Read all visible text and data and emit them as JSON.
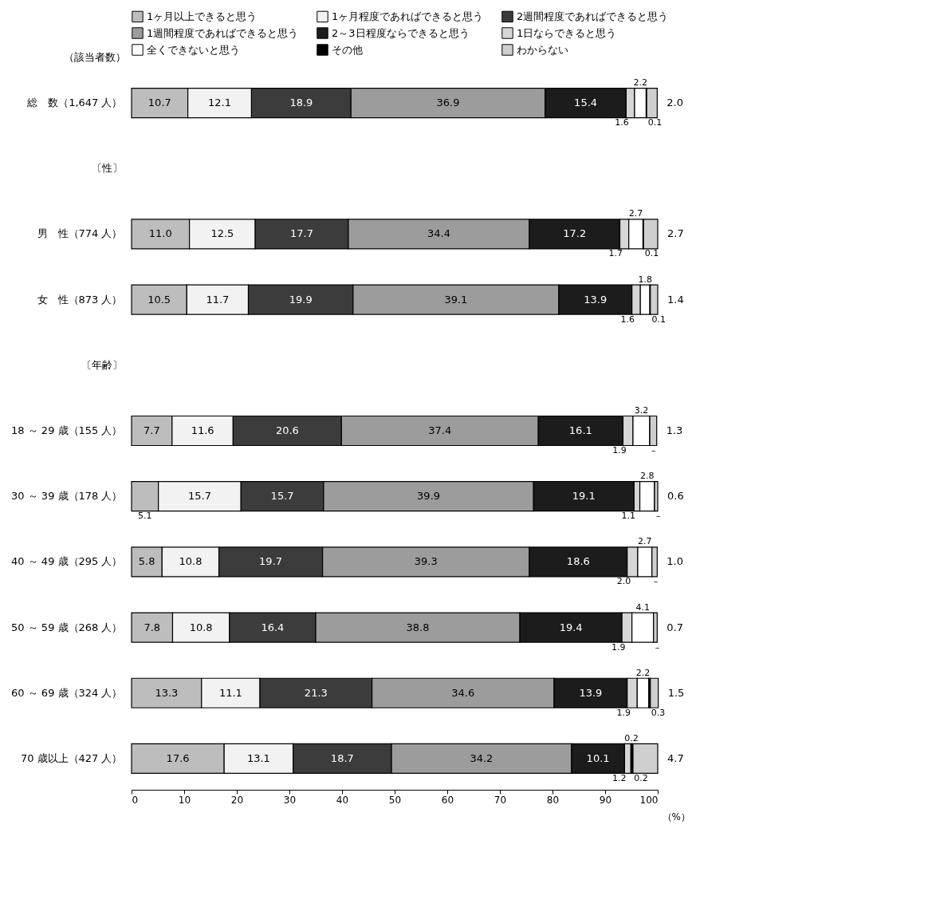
{
  "chart_data": {
    "type": "bar",
    "orientation": "horizontal",
    "stacked": true,
    "data_labels": true,
    "xlabel": "（%）",
    "ylabel": "（該当者数）",
    "legend": "top",
    "grid": false,
    "categories": [
      "総　数（1,647 人）",
      "〔性〕",
      "男　性（774 人）",
      "女　性（873 人）",
      "〔年齢〕",
      "18 ～ 29 歳（155 人）",
      "30 ～ 39 歳（178 人）",
      "40 ～ 49 歳（295 人）",
      "50 ～ 59 歳（268 人）",
      "60 ～ 69 歳（324 人）",
      "70 歳以上（427 人）"
    ],
    "xlim": [
      0,
      100
    ],
    "xticks": [
      0,
      10,
      20,
      30,
      40,
      50,
      60,
      70,
      80,
      90,
      100
    ],
    "series": [
      {
        "name": "1ヶ月以上できると思う",
        "color": "#bdbdbd",
        "values": [
          10.7,
          null,
          11.0,
          10.5,
          null,
          7.7,
          5.1,
          5.8,
          7.8,
          13.3,
          17.6
        ],
        "value_labels": [
          "10.7",
          null,
          "11.0",
          "10.5",
          null,
          "7.7",
          "5.1",
          "5.8",
          "7.8",
          "13.3",
          "17.6"
        ]
      },
      {
        "name": "1ヶ月程度であればできると思う",
        "color": "#f2f2f2",
        "values": [
          12.1,
          null,
          12.5,
          11.7,
          null,
          11.6,
          15.7,
          10.8,
          10.8,
          11.1,
          13.1
        ],
        "value_labels": [
          "12.1",
          null,
          "12.5",
          "11.7",
          null,
          "11.6",
          "15.7",
          "10.8",
          "10.8",
          "11.1",
          "13.1"
        ]
      },
      {
        "name": "2週間程度であればできると思う",
        "color": "#3c3c3c",
        "values": [
          18.9,
          null,
          17.7,
          19.9,
          null,
          20.6,
          15.7,
          19.7,
          16.4,
          21.3,
          18.7
        ],
        "value_labels": [
          "18.9",
          null,
          "17.7",
          "19.9",
          null,
          "20.6",
          "15.7",
          "19.7",
          "16.4",
          "21.3",
          "18.7"
        ]
      },
      {
        "name": "1週間程度であればできると思う",
        "color": "#9c9c9c",
        "values": [
          36.9,
          null,
          34.4,
          39.1,
          null,
          37.4,
          39.9,
          39.3,
          38.8,
          34.6,
          34.2
        ],
        "value_labels": [
          "36.9",
          null,
          "34.4",
          "39.1",
          null,
          "37.4",
          "39.9",
          "39.3",
          "38.8",
          "34.6",
          "34.2"
        ]
      },
      {
        "name": "2～3日程度ならできると思う",
        "color": "#1c1c1c",
        "values": [
          15.4,
          null,
          17.2,
          13.9,
          null,
          16.1,
          19.1,
          18.6,
          19.4,
          13.9,
          10.1
        ],
        "value_labels": [
          "15.4",
          null,
          "17.2",
          "13.9",
          null,
          "16.1",
          "19.1",
          "18.6",
          "19.4",
          "13.9",
          "10.1"
        ]
      },
      {
        "name": "1日ならできると思う",
        "color": "#d6d6d6",
        "values": [
          1.6,
          null,
          1.7,
          1.6,
          null,
          1.9,
          1.1,
          2.0,
          1.9,
          1.9,
          1.2
        ],
        "value_labels": [
          "1.6",
          null,
          "1.7",
          "1.6",
          null,
          "1.9",
          "1.1",
          "2.0",
          "1.9",
          "1.9",
          "1.2"
        ]
      },
      {
        "name": "全くできないと思う",
        "color": "#ffffff",
        "values": [
          2.2,
          null,
          2.7,
          1.8,
          null,
          3.2,
          2.8,
          2.7,
          4.1,
          2.2,
          0.2
        ],
        "value_labels": [
          "2.2",
          null,
          "2.7",
          "1.8",
          null,
          "3.2",
          "2.8",
          "2.7",
          "4.1",
          "2.2",
          "0.2"
        ]
      },
      {
        "name": "その他",
        "color": "#000000",
        "values": [
          0.1,
          null,
          0.1,
          0.1,
          null,
          0,
          0,
          0,
          0,
          0.3,
          0.2
        ],
        "value_labels": [
          "0.1",
          null,
          "0.1",
          "0.1",
          null,
          "–",
          "–",
          "–",
          "–",
          "0.3",
          "0.2"
        ]
      },
      {
        "name": "わからない",
        "color": "#cfcfcf",
        "values": [
          2.0,
          null,
          2.7,
          1.4,
          null,
          1.3,
          0.6,
          1.0,
          0.7,
          1.5,
          4.7
        ],
        "value_labels": [
          "2.0",
          null,
          "2.7",
          "1.4",
          null,
          "1.3",
          "0.6",
          "1.0",
          "0.7",
          "1.5",
          "4.7"
        ]
      }
    ]
  }
}
